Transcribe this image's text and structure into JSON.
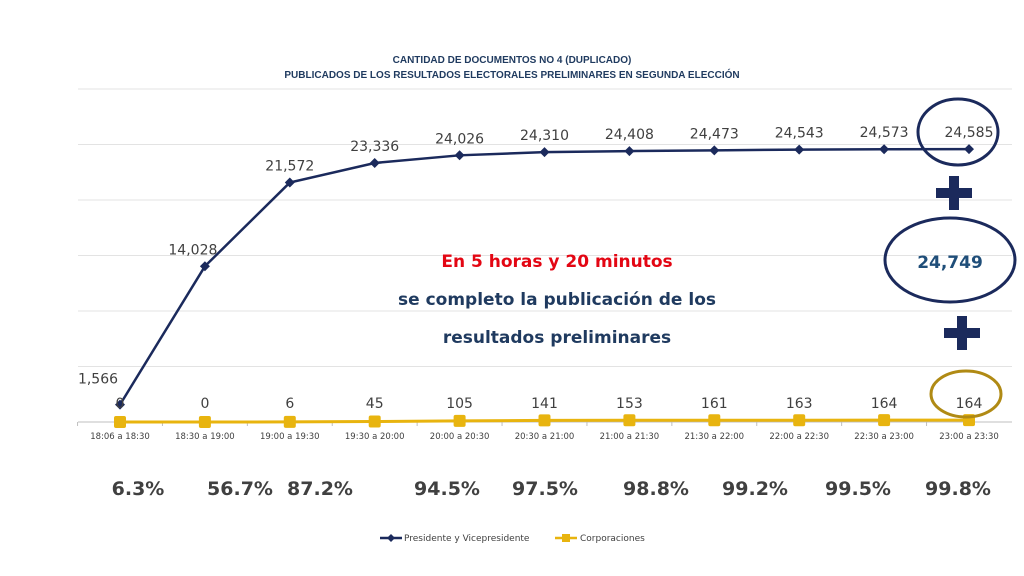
{
  "chart_data": {
    "type": "line",
    "title": "CANTIDAD DE DOCUMENTOS NO 4 (DUPLICADO)",
    "subtitle": "PUBLICADOS DE LOS RESULTADOS ELECTORALES PRELIMINARES EN SEGUNDA ELECCIÓN",
    "categories": [
      "18:06 a 18:30",
      "18:30 a 19:00",
      "19:00 a 19:30",
      "19:30 a 20:00",
      "20:00 a 20:30",
      "20:30 a 21:00",
      "21:00 a 21:30",
      "21:30 a 22:00",
      "22:00 a 22:30",
      "22:30 a 23:00",
      "23:00 a 23:30"
    ],
    "series": [
      {
        "name": "Presidente y Vicepresidente",
        "color": "#1b2a5c",
        "values": [
          1566,
          14028,
          21572,
          23336,
          24026,
          24310,
          24408,
          24473,
          24543,
          24573,
          24585
        ],
        "labels": [
          "1,566",
          "14,028",
          "21,572",
          "23,336",
          "24,026",
          "24,310",
          "24,408",
          "24,473",
          "24,543",
          "24,573",
          "24,585"
        ]
      },
      {
        "name": "Corporaciones",
        "color": "#e8b40f",
        "values": [
          0,
          0,
          6,
          45,
          105,
          141,
          153,
          161,
          163,
          164,
          164
        ],
        "labels": [
          "0",
          "0",
          "6",
          "45",
          "105",
          "141",
          "153",
          "161",
          "163",
          "164",
          "164"
        ]
      }
    ],
    "ylim": [
      0,
      30000
    ],
    "grid": true,
    "legend_position": "bottom",
    "percentages": [
      "6.3%",
      "56.7%",
      "87.2%",
      "94.5%",
      "97.5%",
      "98.8%",
      "99.2%",
      "99.5%",
      "99.8%"
    ],
    "annotations": {
      "line1": "En 5 horas y 20 minutos",
      "line2": "se completo la publicación de los",
      "line3": "resultados preliminares",
      "total": "24,749",
      "plus": "+"
    }
  }
}
